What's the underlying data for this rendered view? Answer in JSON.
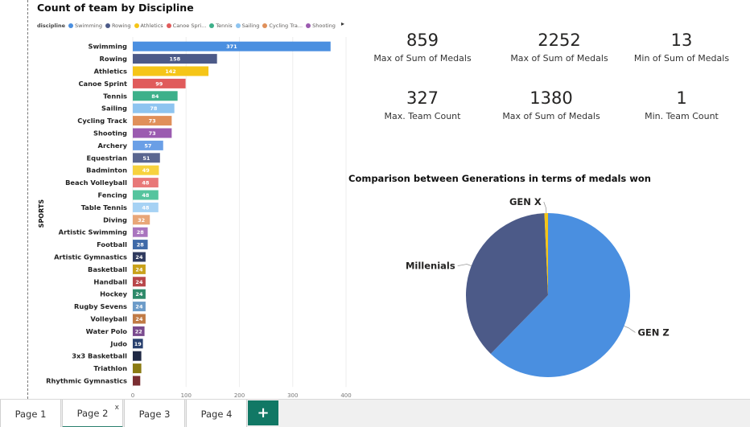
{
  "bar_visual": {
    "title": "Count of team by Discipline",
    "legend_title": "discipline",
    "legend_items": [
      {
        "label": "Swimming",
        "color": "#4A8FE0"
      },
      {
        "label": "Rowing",
        "color": "#4C5A88"
      },
      {
        "label": "Athletics",
        "color": "#F5C518"
      },
      {
        "label": "Canoe Spri...",
        "color": "#E05B5B"
      },
      {
        "label": "Tennis",
        "color": "#3DB08A"
      },
      {
        "label": "Sailing",
        "color": "#8EC4F0"
      },
      {
        "label": "Cycling Tra...",
        "color": "#E0905A"
      },
      {
        "label": "Shooting",
        "color": "#9B5BB0"
      }
    ]
  },
  "chart_data": [
    {
      "type": "bar",
      "orientation": "horizontal",
      "title": "Count of team by Discipline",
      "ylabel": "SPORTS",
      "xlabel": "",
      "xlim": [
        0,
        400
      ],
      "xticks": [
        0,
        100,
        200,
        300,
        400
      ],
      "grid": true,
      "categories": [
        "Swimming",
        "Rowing",
        "Athletics",
        "Canoe Sprint",
        "Tennis",
        "Sailing",
        "Cycling Track",
        "Shooting",
        "Archery",
        "Equestrian",
        "Badminton",
        "Beach Volleyball",
        "Fencing",
        "Table Tennis",
        "Diving",
        "Artistic Swimming",
        "Football",
        "Artistic Gymnastics",
        "Basketball",
        "Handball",
        "Hockey",
        "Rugby Sevens",
        "Volleyball",
        "Water Polo",
        "Judo",
        "3x3 Basketball",
        "Triathlon",
        "Rhythmic Gymnastics"
      ],
      "values": [
        371,
        158,
        142,
        99,
        84,
        78,
        73,
        73,
        57,
        51,
        49,
        48,
        48,
        48,
        32,
        28,
        28,
        24,
        24,
        24,
        24,
        24,
        24,
        22,
        19,
        16,
        16,
        14
      ],
      "value_labels": [
        "371",
        "158",
        "142",
        "99",
        "84",
        "78",
        "73",
        "73",
        "57",
        "51",
        "49",
        "48",
        "48",
        "48",
        "32",
        "28",
        "28",
        "24",
        "24",
        "24",
        "24",
        "24",
        "24",
        "22",
        "19",
        "",
        "",
        ""
      ],
      "colors": [
        "#4A8FE0",
        "#4C5A88",
        "#F5C518",
        "#E05B5B",
        "#3DB08A",
        "#8EC4F0",
        "#E0905A",
        "#9B5BB0",
        "#6A9FE6",
        "#5A6690",
        "#F7D23E",
        "#E87878",
        "#55C49E",
        "#A6D2F4",
        "#E8A678",
        "#A974BE",
        "#3F6AA8",
        "#2F3A5E",
        "#C9A11A",
        "#B8464A",
        "#2E8A6A",
        "#6C9BC8",
        "#C07A45",
        "#7A4A8E",
        "#28406E",
        "#1F2844",
        "#8A7A12",
        "#7A2E32"
      ]
    },
    {
      "type": "pie",
      "title": "Comparison between Generations in terms of medals won",
      "categories": [
        "GEN Z",
        "Millenials",
        "GEN X"
      ],
      "values": [
        62.3,
        37.0,
        0.7
      ],
      "colors": [
        "#4A8FE0",
        "#4C5A88",
        "#F5C518"
      ]
    }
  ],
  "kpis": [
    {
      "value": "859",
      "label": "Max of Sum of Medals"
    },
    {
      "value": "2252",
      "label": "Max of Sum of Medals"
    },
    {
      "value": "13",
      "label": "Min of Sum of Medals"
    },
    {
      "value": "327",
      "label": "Max. Team Count"
    },
    {
      "value": "1380",
      "label": "Max of Sum of Medals"
    },
    {
      "value": "1",
      "label": "Min. Team Count"
    }
  ],
  "tabs": [
    {
      "label": "Page 1"
    },
    {
      "label": "Page 2",
      "active": true,
      "close_glyph": "x"
    },
    {
      "label": "Page 3"
    },
    {
      "label": "Page 4"
    }
  ],
  "add_tab_glyph": "+",
  "legend_arrow_glyph": "▸"
}
